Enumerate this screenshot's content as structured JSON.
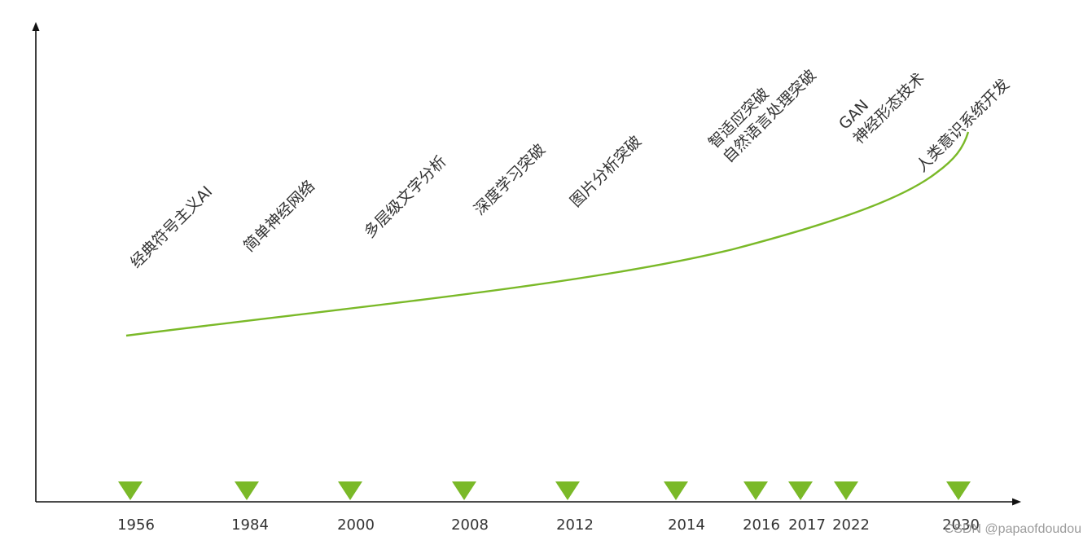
{
  "colors": {
    "accent": "#7ab928",
    "axis": "#111111",
    "text": "#333333",
    "watermark": "#8a8a8a"
  },
  "timeline": {
    "years": [
      "1956",
      "1984",
      "2000",
      "2008",
      "2012",
      "2014",
      "2016",
      "2017",
      "2022",
      "2030"
    ],
    "milestones": [
      {
        "lines": [
          "经典符号主义AI"
        ]
      },
      {
        "lines": [
          "简单神经网络"
        ]
      },
      {
        "lines": [
          "多层级文字分析"
        ]
      },
      {
        "lines": [
          "深度学习突破"
        ]
      },
      {
        "lines": [
          "图片分析突破"
        ]
      },
      {
        "lines": [
          "智适应突破",
          "自然语言处理突破"
        ]
      },
      {
        "lines": [
          "GAN",
          "神经形态技术"
        ]
      },
      {
        "lines": [
          "人类意识系统开发"
        ]
      }
    ]
  },
  "watermark": "CSDN @papaofdoudou"
}
